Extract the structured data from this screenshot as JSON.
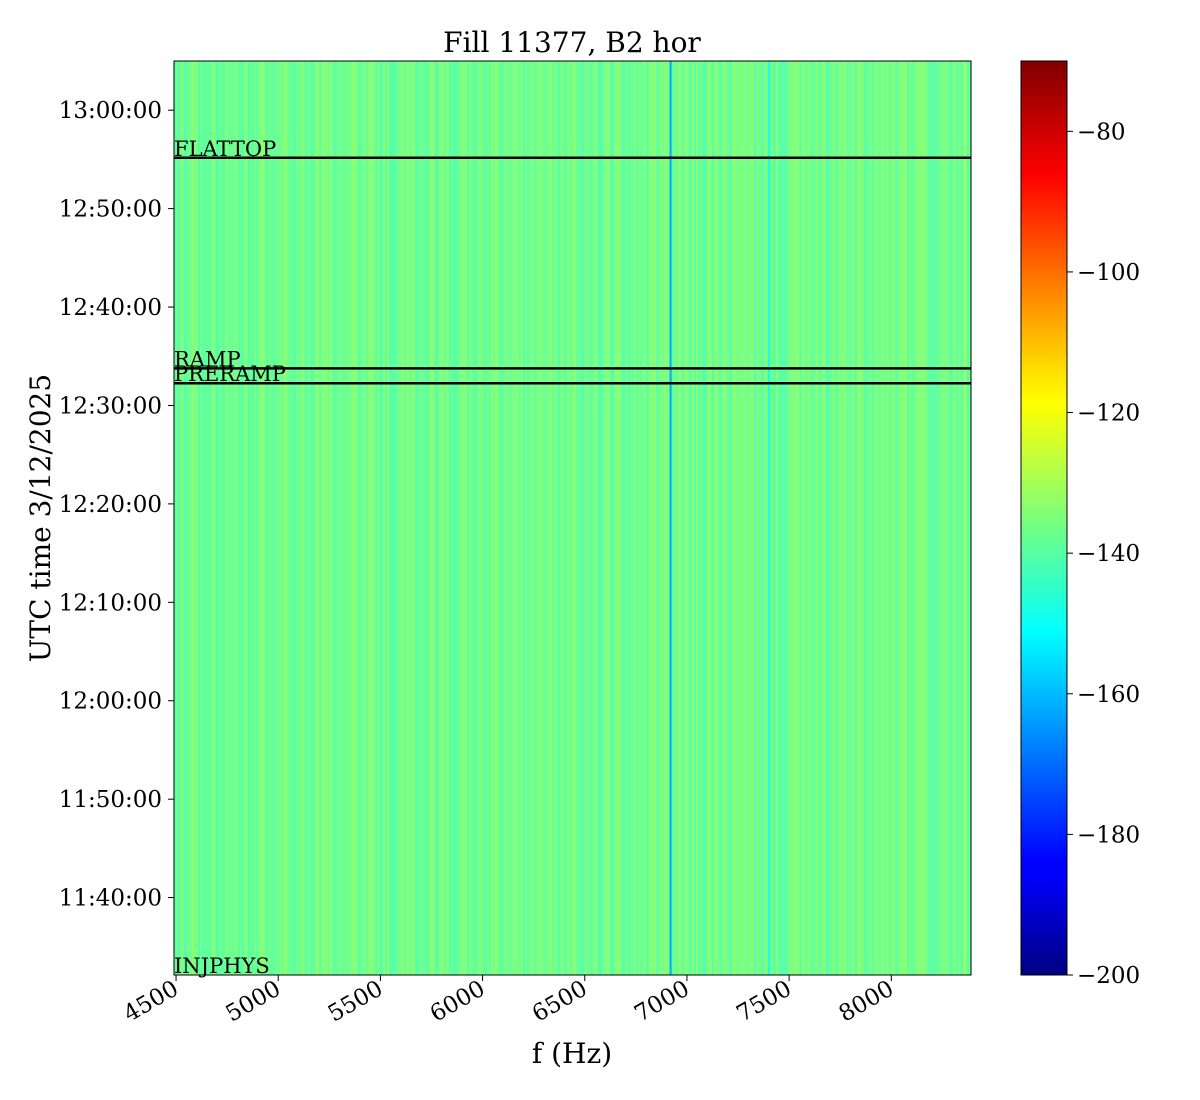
{
  "chart_data": {
    "type": "heatmap",
    "title": "Fill 11377, B2 hor",
    "xlabel": "f (Hz)",
    "ylabel": "UTC time 3/12/2025",
    "xlim": [
      4490,
      8390
    ],
    "ylim": [
      "11:32:08",
      "13:05:00"
    ],
    "xticks": [
      4500,
      5000,
      5500,
      6000,
      6500,
      7000,
      7500,
      8000
    ],
    "yticks": [
      "11:40:00",
      "11:50:00",
      "12:00:00",
      "12:10:00",
      "12:20:00",
      "12:30:00",
      "12:40:00",
      "12:50:00",
      "13:00:00"
    ],
    "colorbar": {
      "colormap": "jet",
      "range": [
        -200,
        -70
      ],
      "ticks": [
        -200,
        -180,
        -160,
        -140,
        -120,
        -100,
        -80
      ],
      "tick_labels": [
        "−200",
        "−180",
        "−160",
        "−140",
        "−120",
        "−100",
        "−80"
      ]
    },
    "typical_value": -137,
    "notable_lines": [
      {
        "f": 6920,
        "value": -162
      },
      {
        "f": 7403,
        "value": -150
      }
    ],
    "annotations": [
      {
        "label": "INJPHYS",
        "time": "11:32:08",
        "line": false
      },
      {
        "label": "PRERAMP",
        "time": "12:32:16",
        "line": true
      },
      {
        "label": "RAMP",
        "time": "12:33:46",
        "line": true
      },
      {
        "label": "FLATTOP",
        "time": "12:55:10",
        "line": true
      }
    ]
  }
}
